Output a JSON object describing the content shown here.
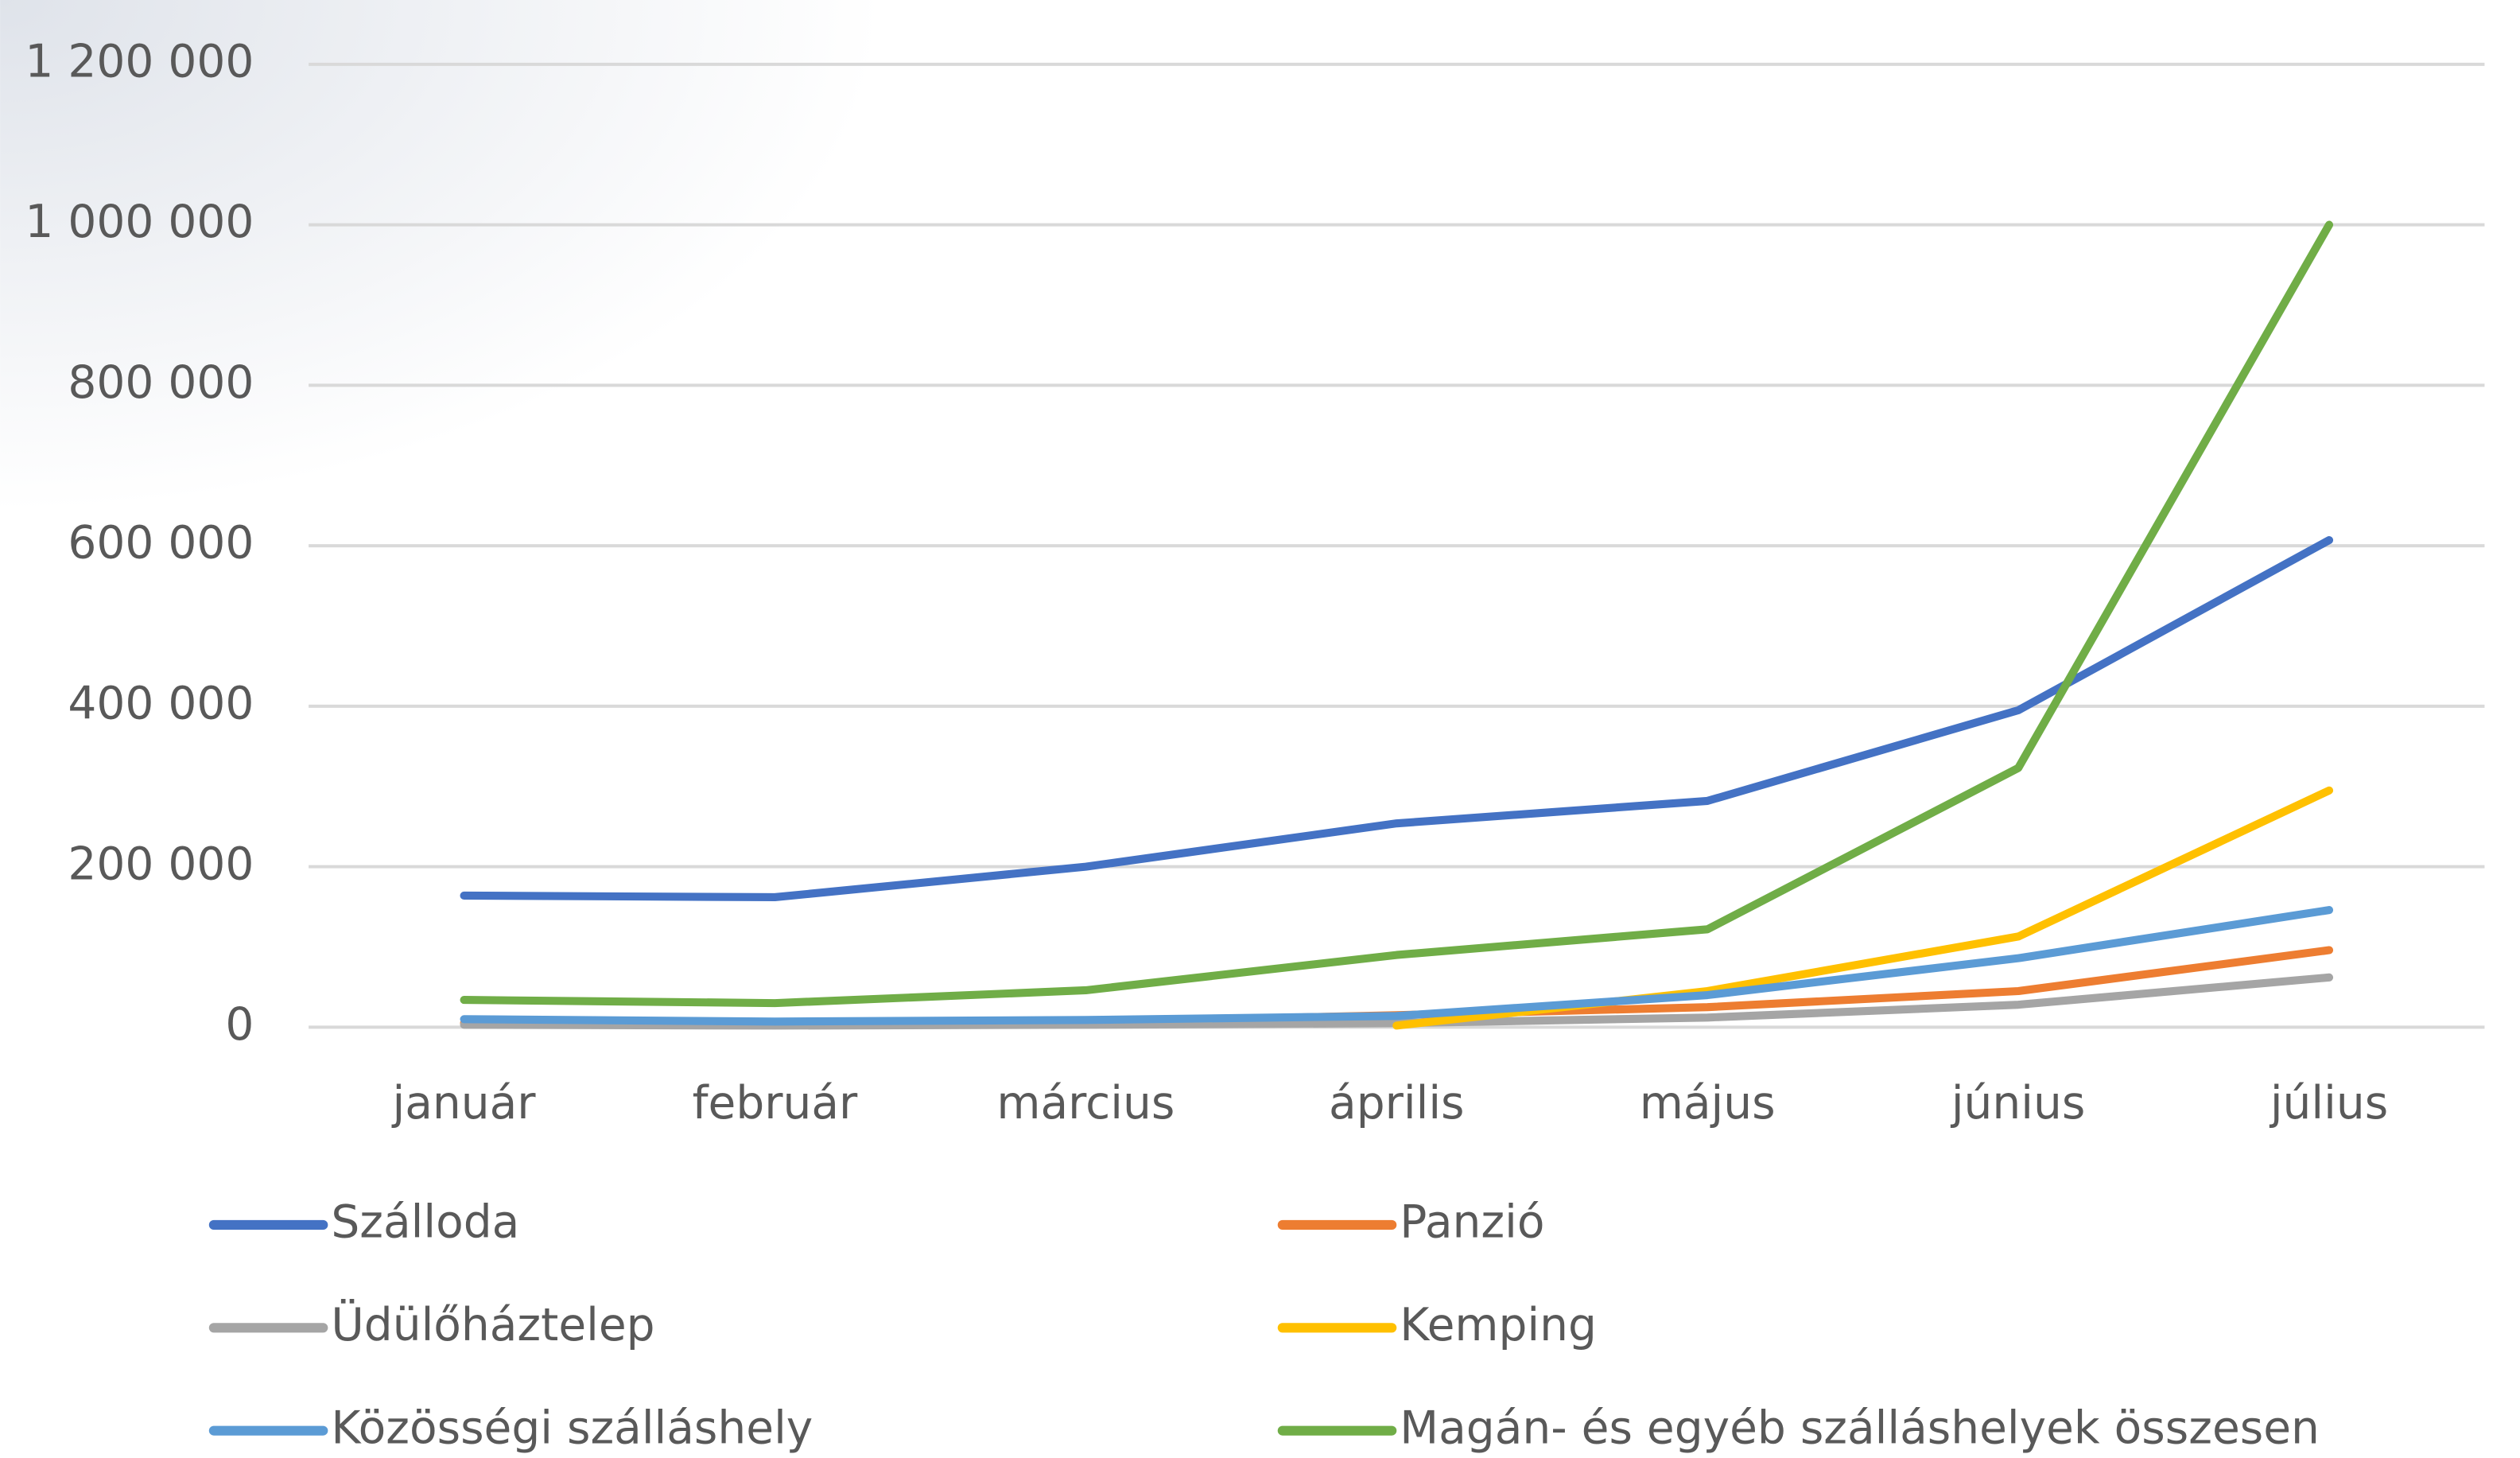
{
  "chart_data": {
    "type": "line",
    "categories": [
      "január",
      "február",
      "március",
      "április",
      "május",
      "június",
      "július"
    ],
    "series": [
      {
        "name": "Szálloda",
        "color": "#4472c4",
        "values": [
          164000,
          162000,
          200000,
          254000,
          282000,
          395000,
          607000
        ]
      },
      {
        "name": "Panzió",
        "color": "#ed7d31",
        "values": [
          5000,
          4000,
          6000,
          15000,
          25000,
          45000,
          96000
        ]
      },
      {
        "name": "Üdülőháztelep",
        "color": "#a5a5a5",
        "values": [
          3000,
          2000,
          3000,
          5000,
          12000,
          28000,
          62000
        ]
      },
      {
        "name": "Kemping",
        "color": "#ffc000",
        "values": [
          null,
          null,
          null,
          2000,
          45000,
          113000,
          295000
        ]
      },
      {
        "name": "Közösségi szálláshely",
        "color": "#5b9bd5",
        "values": [
          10000,
          7000,
          9000,
          14000,
          40000,
          86000,
          146000
        ]
      },
      {
        "name": "Magán- és egyéb szálláshelyek összesen",
        "color": "#70ad47",
        "values": [
          34000,
          30000,
          46000,
          90000,
          122000,
          323000,
          1000000
        ]
      }
    ],
    "ylim": [
      0,
      1200000
    ],
    "yticks": [
      0,
      {
        "value": 200000,
        "label": "200 000"
      },
      {
        "value": 400000,
        "label": "400 000"
      },
      {
        "value": 600000,
        "label": "600 000"
      },
      {
        "value": 800000,
        "label": "800 000"
      },
      {
        "value": 1000000,
        "label": "1 000 000"
      },
      {
        "value": 1200000,
        "label": "1 200 000"
      }
    ],
    "grid": true,
    "legend": "bottom"
  }
}
